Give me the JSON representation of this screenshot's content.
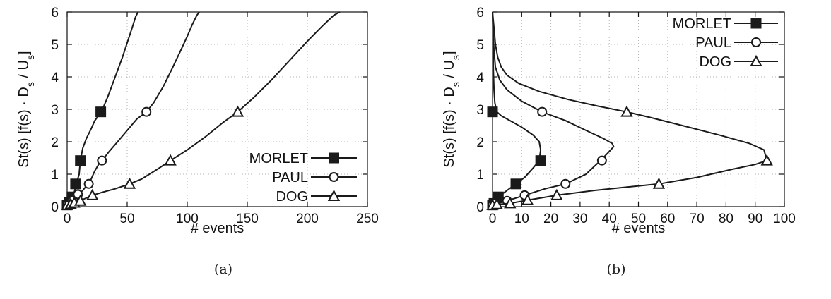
{
  "chart_data": [
    {
      "type": "line",
      "caption": "(a)",
      "xlabel": "# events",
      "ylabel_parts": [
        "St(s) [f(s) · D",
        "s",
        " / U",
        "s",
        "]"
      ],
      "xlim": [
        0,
        250
      ],
      "ylim": [
        0,
        6
      ],
      "xticks": [
        "0",
        "50",
        "100",
        "150",
        "200",
        "250"
      ],
      "yticks": [
        "0",
        "1",
        "2",
        "3",
        "4",
        "5",
        "6"
      ],
      "grid": true,
      "legend_position": "bottom-right",
      "series": [
        {
          "name": "MORLET",
          "marker": "square",
          "x": [
            0,
            1,
            3,
            5,
            6,
            7,
            8,
            10,
            11,
            13,
            16,
            20,
            23,
            26,
            28,
            30,
            34,
            38,
            42,
            46,
            50,
            54,
            57,
            59
          ],
          "y": [
            0.05,
            0.1,
            0.2,
            0.3,
            0.45,
            0.6,
            0.75,
            1.0,
            1.42,
            1.8,
            2.1,
            2.4,
            2.65,
            2.8,
            2.92,
            3.05,
            3.4,
            3.8,
            4.2,
            4.6,
            5.05,
            5.5,
            5.85,
            6.0
          ],
          "marker_x": [
            0,
            2,
            4,
            7,
            11,
            28
          ],
          "marker_y": [
            0.05,
            0.12,
            0.3,
            0.7,
            1.42,
            2.92
          ]
        },
        {
          "name": "PAUL",
          "marker": "circle",
          "x": [
            0,
            2,
            5,
            9,
            13,
            17,
            20,
            23,
            27,
            29,
            35,
            42,
            50,
            58,
            66,
            72,
            80,
            88,
            95,
            100,
            104,
            108,
            110
          ],
          "y": [
            0.05,
            0.12,
            0.2,
            0.35,
            0.5,
            0.68,
            0.85,
            1.1,
            1.35,
            1.42,
            1.7,
            2.0,
            2.35,
            2.7,
            2.92,
            3.2,
            3.7,
            4.3,
            4.85,
            5.25,
            5.6,
            5.9,
            6.0
          ],
          "marker_x": [
            0,
            2,
            5,
            9,
            18,
            29,
            66
          ],
          "marker_y": [
            0.05,
            0.12,
            0.2,
            0.38,
            0.7,
            1.42,
            2.92
          ]
        },
        {
          "name": "DOG",
          "marker": "triangle",
          "x": [
            0,
            3,
            6,
            10,
            15,
            21,
            30,
            40,
            52,
            62,
            75,
            86,
            100,
            115,
            130,
            142,
            155,
            170,
            185,
            200,
            212,
            222,
            227
          ],
          "y": [
            0.05,
            0.08,
            0.12,
            0.18,
            0.25,
            0.35,
            0.45,
            0.55,
            0.7,
            0.85,
            1.15,
            1.42,
            1.75,
            2.15,
            2.6,
            2.92,
            3.35,
            3.9,
            4.5,
            5.1,
            5.55,
            5.9,
            6.0
          ],
          "marker_x": [
            0,
            3,
            6,
            11,
            21,
            52,
            86,
            142
          ],
          "marker_y": [
            0.05,
            0.08,
            0.12,
            0.18,
            0.35,
            0.7,
            1.42,
            2.92
          ]
        }
      ]
    },
    {
      "type": "line",
      "caption": "(b)",
      "xlabel": "# events",
      "ylabel_parts": [
        "St(s) [f(s) · D",
        "s",
        " / U",
        "s",
        "]"
      ],
      "xlim": [
        0,
        100
      ],
      "ylim": [
        0,
        6
      ],
      "xticks": [
        "0",
        "10",
        "20",
        "30",
        "40",
        "50",
        "60",
        "70",
        "80",
        "90",
        "100"
      ],
      "yticks": [
        "0",
        "1",
        "2",
        "3",
        "4",
        "5",
        "6"
      ],
      "grid": true,
      "legend_position": "top-right",
      "series": [
        {
          "name": "MORLET",
          "marker": "square",
          "x": [
            0,
            2,
            5,
            8,
            11,
            14,
            16,
            16.5,
            16,
            14,
            10,
            6,
            3,
            1.5,
            0.8,
            0.5,
            0.3,
            0.2,
            0.1,
            0
          ],
          "y": [
            0.05,
            0.3,
            0.5,
            0.7,
            0.9,
            1.2,
            1.42,
            1.75,
            2.0,
            2.2,
            2.45,
            2.65,
            2.8,
            2.92,
            3.2,
            3.6,
            4.2,
            5.0,
            5.6,
            6.0
          ],
          "marker_x": [
            0,
            0.5,
            2,
            8,
            16.5,
            0
          ],
          "marker_y": [
            0.05,
            0.1,
            0.3,
            0.7,
            1.42,
            2.92
          ]
        },
        {
          "name": "PAUL",
          "marker": "circle",
          "x": [
            0,
            5,
            11,
            18,
            25,
            32,
            37,
            40,
            41.5,
            41,
            38,
            32,
            25,
            17,
            10,
            5,
            2.5,
            1,
            0.5,
            0.2,
            0
          ],
          "y": [
            0.05,
            0.18,
            0.35,
            0.55,
            0.7,
            1.0,
            1.42,
            1.7,
            1.85,
            1.95,
            2.1,
            2.35,
            2.65,
            2.92,
            3.25,
            3.6,
            3.9,
            4.3,
            4.8,
            5.4,
            6.0
          ],
          "marker_x": [
            0,
            1,
            5,
            11,
            25,
            37.5,
            17
          ],
          "marker_y": [
            0.05,
            0.1,
            0.18,
            0.35,
            0.7,
            1.42,
            2.92
          ]
        },
        {
          "name": "DOG",
          "marker": "triangle",
          "x": [
            0,
            6,
            12,
            22,
            35,
            48,
            57,
            70,
            82,
            90,
            94,
            93,
            88,
            78,
            65,
            54,
            46,
            36,
            26,
            16,
            9,
            5,
            3,
            1.8,
            1,
            0.5,
            0
          ],
          "y": [
            0.05,
            0.1,
            0.2,
            0.35,
            0.5,
            0.62,
            0.7,
            0.9,
            1.15,
            1.3,
            1.42,
            1.75,
            1.95,
            2.2,
            2.5,
            2.75,
            2.92,
            3.1,
            3.3,
            3.55,
            3.8,
            4.05,
            4.3,
            4.6,
            5.0,
            5.5,
            6.0
          ],
          "marker_x": [
            0,
            1.5,
            6,
            12,
            22,
            57,
            94,
            46
          ],
          "marker_y": [
            0.05,
            0.07,
            0.1,
            0.2,
            0.35,
            0.7,
            1.42,
            2.92
          ]
        }
      ]
    }
  ]
}
